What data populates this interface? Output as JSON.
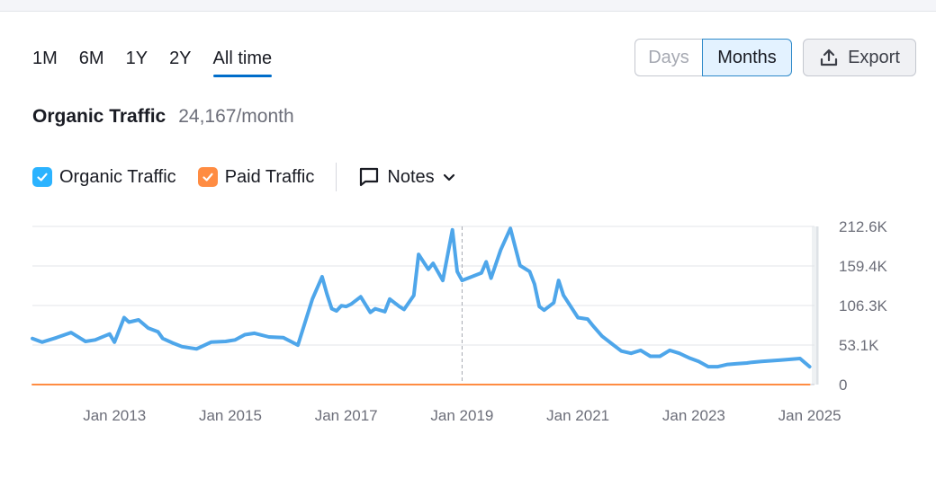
{
  "periods": [
    {
      "label": "1M",
      "active": false
    },
    {
      "label": "6M",
      "active": false
    },
    {
      "label": "1Y",
      "active": false
    },
    {
      "label": "2Y",
      "active": false
    },
    {
      "label": "All time",
      "active": true
    }
  ],
  "granularity": {
    "days_label": "Days",
    "months_label": "Months",
    "selected": "Months"
  },
  "export_label": "Export",
  "header": {
    "title": "Organic Traffic",
    "value": "24,167/month"
  },
  "legend": {
    "organic_label": "Organic Traffic",
    "paid_label": "Paid Traffic",
    "notes_label": "Notes"
  },
  "colors": {
    "organic": "#4ea6ea",
    "paid": "#ff8c42",
    "accent": "#006dca",
    "grid": "#e3e5ea"
  },
  "icons": {
    "export": "upload-icon",
    "notes": "comment-icon",
    "dropdown": "chevron-down-icon",
    "check": "check-icon"
  },
  "chart_data": {
    "type": "line",
    "title": "Organic Traffic",
    "xlabel": "",
    "ylabel": "",
    "x_range": [
      "2011-08",
      "2025-02"
    ],
    "ylim": [
      0,
      212600
    ],
    "y_ticks": [
      0,
      53100,
      106300,
      159400,
      212600
    ],
    "y_tick_labels": [
      "0",
      "53.1K",
      "106.3K",
      "159.4K",
      "212.6K"
    ],
    "x_ticks": [
      "2013-01",
      "2015-01",
      "2017-01",
      "2019-01",
      "2021-01",
      "2023-01",
      "2025-01"
    ],
    "x_tick_labels": [
      "Jan 2013",
      "Jan 2015",
      "Jan 2017",
      "Jan 2019",
      "Jan 2021",
      "Jan 2023",
      "Jan 2025"
    ],
    "grid": true,
    "crosshair_x": "2019-01",
    "series": [
      {
        "name": "Organic Traffic",
        "color": "#4ea6ea",
        "x": [
          "2011-08",
          "2011-10",
          "2012-01",
          "2012-04",
          "2012-06",
          "2012-07",
          "2012-09",
          "2012-12",
          "2013-01",
          "2013-03",
          "2013-04",
          "2013-06",
          "2013-08",
          "2013-10",
          "2013-11",
          "2014-01",
          "2014-03",
          "2014-06",
          "2014-09",
          "2014-12",
          "2015-02",
          "2015-04",
          "2015-06",
          "2015-09",
          "2015-12",
          "2016-03",
          "2016-06",
          "2016-08",
          "2016-09",
          "2016-10",
          "2016-11",
          "2016-12",
          "2017-01",
          "2017-02",
          "2017-04",
          "2017-06",
          "2017-07",
          "2017-09",
          "2017-10",
          "2017-12",
          "2018-01",
          "2018-03",
          "2018-04",
          "2018-06",
          "2018-07",
          "2018-09",
          "2018-11",
          "2018-12",
          "2019-01",
          "2019-03",
          "2019-05",
          "2019-06",
          "2019-07",
          "2019-09",
          "2019-11",
          "2020-01",
          "2020-03",
          "2020-04",
          "2020-05",
          "2020-06",
          "2020-08",
          "2020-09",
          "2020-10",
          "2020-12",
          "2021-01",
          "2021-03",
          "2021-04",
          "2021-06",
          "2021-08",
          "2021-10",
          "2021-12",
          "2022-02",
          "2022-04",
          "2022-06",
          "2022-08",
          "2022-10",
          "2022-12",
          "2023-02",
          "2023-04",
          "2023-06",
          "2023-08",
          "2023-10",
          "2023-12",
          "2024-01",
          "2024-03",
          "2024-05",
          "2024-07",
          "2024-09",
          "2024-11",
          "2025-01"
        ],
        "values": [
          62000,
          57000,
          63000,
          70000,
          62000,
          58000,
          60000,
          68000,
          57000,
          90000,
          84000,
          87000,
          76000,
          71000,
          62000,
          56000,
          51000,
          48000,
          57000,
          58000,
          60000,
          67000,
          69000,
          64000,
          63000,
          53000,
          115000,
          145000,
          122000,
          102000,
          99000,
          106000,
          105000,
          108000,
          118000,
          97000,
          102000,
          98000,
          115000,
          105000,
          101000,
          120000,
          175000,
          155000,
          163000,
          140000,
          208000,
          152000,
          140000,
          145000,
          150000,
          165000,
          143000,
          181000,
          210000,
          160000,
          152000,
          135000,
          105000,
          100000,
          110000,
          140000,
          120000,
          100000,
          90000,
          88000,
          80000,
          65000,
          55000,
          45000,
          42000,
          46000,
          38000,
          38000,
          46000,
          42000,
          36000,
          31000,
          24000,
          24000,
          27000,
          28000,
          29000,
          30000,
          31000,
          32000,
          33000,
          34000,
          35000,
          24000
        ]
      },
      {
        "name": "Paid Traffic",
        "color": "#ff8c42",
        "x": [
          "2011-08",
          "2025-01"
        ],
        "values": [
          0,
          0
        ]
      }
    ]
  }
}
